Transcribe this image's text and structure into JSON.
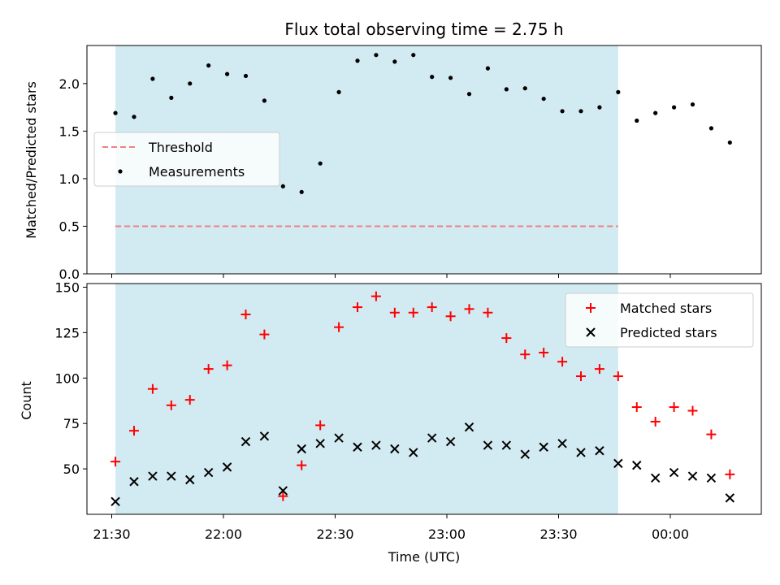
{
  "colors": {
    "span": "#add8e6",
    "threshold": "#f08080",
    "measurement": "#000000",
    "matched": "#ff0000",
    "predicted": "#000000"
  },
  "chart_data": [
    {
      "type": "scatter",
      "title": "Flux total observing time = 2.75 h",
      "xlabel": "",
      "ylabel": "Matched/Predicted stars",
      "ylim": [
        0,
        2.4
      ],
      "yticks": [
        "0.0",
        "0.5",
        "1.0",
        "1.5",
        "2.0"
      ],
      "ytick_values": [
        0,
        0.5,
        1.0,
        1.5,
        2.0
      ],
      "grid": false,
      "legend_position": "center-left",
      "observing_span": [
        "21:31",
        "23:46"
      ],
      "threshold": {
        "name": "Threshold",
        "value": 0.5,
        "style": "dashed"
      },
      "series": [
        {
          "name": "Measurements",
          "x": [
            "21:31",
            "21:36",
            "21:41",
            "21:46",
            "21:51",
            "21:56",
            "22:01",
            "22:06",
            "22:11",
            "22:16",
            "22:21",
            "22:26",
            "22:31",
            "22:36",
            "22:41",
            "22:46",
            "22:51",
            "22:56",
            "23:01",
            "23:06",
            "23:11",
            "23:16",
            "23:21",
            "23:26",
            "23:31",
            "23:36",
            "23:41",
            "23:46",
            "23:51",
            "23:56",
            "00:01",
            "00:06",
            "00:11",
            "00:16"
          ],
          "values": [
            1.69,
            1.65,
            2.05,
            1.85,
            2.0,
            2.19,
            2.1,
            2.08,
            1.82,
            0.92,
            0.86,
            1.16,
            1.91,
            2.24,
            2.3,
            2.23,
            2.3,
            2.07,
            2.06,
            1.89,
            2.16,
            1.94,
            1.95,
            1.84,
            1.71,
            1.71,
            1.75,
            1.91,
            1.61,
            1.69,
            1.75,
            1.78,
            1.53,
            1.38
          ]
        }
      ]
    },
    {
      "type": "scatter",
      "title": "",
      "xlabel": "Time (UTC)",
      "ylabel": "Count",
      "ylim": [
        25,
        152
      ],
      "yticks": [
        "50",
        "75",
        "100",
        "125",
        "150"
      ],
      "ytick_values": [
        50,
        75,
        100,
        125,
        150
      ],
      "xticks": [
        "21:30",
        "22:00",
        "22:30",
        "23:00",
        "23:30",
        "00:00"
      ],
      "grid": false,
      "legend_position": "top-right",
      "observing_span": [
        "21:31",
        "23:46"
      ],
      "series": [
        {
          "name": "Matched stars",
          "marker": "plus",
          "x": [
            "21:31",
            "21:36",
            "21:41",
            "21:46",
            "21:51",
            "21:56",
            "22:01",
            "22:06",
            "22:11",
            "22:16",
            "22:21",
            "22:26",
            "22:31",
            "22:36",
            "22:41",
            "22:46",
            "22:51",
            "22:56",
            "23:01",
            "23:06",
            "23:11",
            "23:16",
            "23:21",
            "23:26",
            "23:31",
            "23:36",
            "23:41",
            "23:46",
            "23:51",
            "23:56",
            "00:01",
            "00:06",
            "00:11",
            "00:16"
          ],
          "values": [
            54,
            71,
            94,
            85,
            88,
            105,
            107,
            135,
            124,
            35,
            52,
            74,
            128,
            139,
            145,
            136,
            136,
            139,
            134,
            138,
            136,
            122,
            113,
            114,
            109,
            101,
            105,
            101,
            84,
            76,
            84,
            82,
            69,
            47
          ]
        },
        {
          "name": "Predicted stars",
          "marker": "x",
          "x": [
            "21:31",
            "21:36",
            "21:41",
            "21:46",
            "21:51",
            "21:56",
            "22:01",
            "22:06",
            "22:11",
            "22:16",
            "22:21",
            "22:26",
            "22:31",
            "22:36",
            "22:41",
            "22:46",
            "22:51",
            "22:56",
            "23:01",
            "23:06",
            "23:11",
            "23:16",
            "23:21",
            "23:26",
            "23:31",
            "23:36",
            "23:41",
            "23:46",
            "23:51",
            "23:56",
            "00:01",
            "00:06",
            "00:11",
            "00:16"
          ],
          "values": [
            32,
            43,
            46,
            46,
            44,
            48,
            51,
            65,
            68,
            38,
            61,
            64,
            67,
            62,
            63,
            61,
            59,
            67,
            65,
            73,
            63,
            63,
            58,
            62,
            64,
            59,
            60,
            53,
            52,
            45,
            48,
            46,
            45,
            34
          ]
        }
      ]
    }
  ]
}
